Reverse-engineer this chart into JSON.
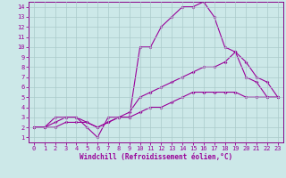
{
  "xlabel": "Windchill (Refroidissement éolien,°C)",
  "bg_color": "#cce8e8",
  "grid_color": "#aacaca",
  "line_color": "#990099",
  "spine_color": "#880088",
  "xlim": [
    -0.5,
    23.5
  ],
  "ylim": [
    0.5,
    14.5
  ],
  "xticks": [
    0,
    1,
    2,
    3,
    4,
    5,
    6,
    7,
    8,
    9,
    10,
    11,
    12,
    13,
    14,
    15,
    16,
    17,
    18,
    19,
    20,
    21,
    22,
    23
  ],
  "yticks": [
    1,
    2,
    3,
    4,
    5,
    6,
    7,
    8,
    9,
    10,
    11,
    12,
    13,
    14
  ],
  "line1_x": [
    0,
    1,
    2,
    3,
    4,
    5,
    6,
    7,
    8,
    9,
    10,
    11,
    12,
    13,
    14,
    15,
    16,
    17,
    18,
    19,
    20,
    21,
    22,
    23
  ],
  "line1_y": [
    2,
    2,
    3,
    3,
    3,
    2,
    1,
    3,
    3,
    3,
    10,
    10,
    12,
    13,
    14,
    14,
    14.5,
    13,
    10,
    9.5,
    7,
    6.5,
    5,
    5
  ],
  "line2_x": [
    0,
    1,
    2,
    3,
    4,
    5,
    6,
    7,
    8,
    9,
    10,
    11,
    12,
    13,
    14,
    15,
    16,
    17,
    18,
    19,
    20,
    21,
    22,
    23
  ],
  "line2_y": [
    2,
    2,
    2.5,
    3,
    3,
    2.5,
    2,
    2.5,
    3,
    3.5,
    5,
    5.5,
    6,
    6.5,
    7,
    7.5,
    8,
    8,
    8.5,
    9.5,
    8.5,
    7,
    6.5,
    5
  ],
  "line3_x": [
    0,
    1,
    2,
    3,
    4,
    5,
    6,
    7,
    8,
    9,
    10,
    11,
    12,
    13,
    14,
    15,
    16,
    17,
    18,
    19,
    20,
    21,
    22,
    23
  ],
  "line3_y": [
    2,
    2,
    2,
    2.5,
    2.5,
    2.5,
    2,
    2.5,
    3,
    3,
    3.5,
    4,
    4,
    4.5,
    5,
    5.5,
    5.5,
    5.5,
    5.5,
    5.5,
    5,
    5,
    5,
    5
  ],
  "tick_fontsize": 5,
  "xlabel_fontsize": 5.5
}
